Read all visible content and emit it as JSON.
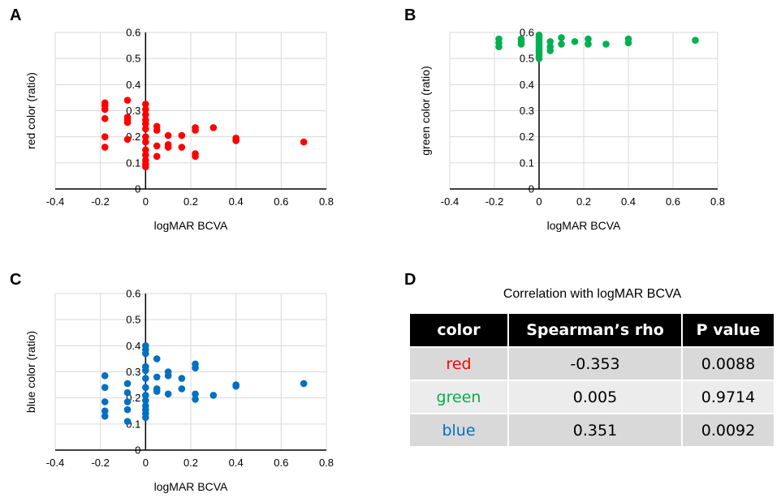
{
  "panels": [
    {
      "letter": "A"
    },
    {
      "letter": "B"
    },
    {
      "letter": "C"
    },
    {
      "letter": "D"
    }
  ],
  "chart_data": [
    {
      "type": "scatter",
      "panel": "A",
      "xlabel": "logMAR BCVA",
      "ylabel": "red color (ratio)",
      "xlim": [
        -0.4,
        0.8
      ],
      "ylim": [
        0,
        0.6
      ],
      "xticks": [
        "-0.4",
        "-0.2",
        "0",
        "0.2",
        "0.4",
        "0.6",
        "0.8"
      ],
      "yticks": [
        "0",
        "0.1",
        "0.2",
        "0.3",
        "0.4",
        "0.5",
        "0.6"
      ],
      "grid": true,
      "color": "#ff0000",
      "points": [
        [
          -0.18,
          0.33
        ],
        [
          -0.18,
          0.32
        ],
        [
          -0.18,
          0.305
        ],
        [
          -0.18,
          0.27
        ],
        [
          -0.18,
          0.2
        ],
        [
          -0.18,
          0.16
        ],
        [
          -0.08,
          0.34
        ],
        [
          -0.08,
          0.275
        ],
        [
          -0.08,
          0.265
        ],
        [
          -0.08,
          0.255
        ],
        [
          -0.08,
          0.19
        ],
        [
          0,
          0.325
        ],
        [
          0,
          0.305
        ],
        [
          0,
          0.285
        ],
        [
          0,
          0.265
        ],
        [
          0,
          0.25
        ],
        [
          0,
          0.23
        ],
        [
          0,
          0.2
        ],
        [
          0,
          0.18
        ],
        [
          0,
          0.15
        ],
        [
          0,
          0.13
        ],
        [
          0,
          0.11
        ],
        [
          0,
          0.095
        ],
        [
          0,
          0.085
        ],
        [
          0.05,
          0.24
        ],
        [
          0.05,
          0.225
        ],
        [
          0.05,
          0.165
        ],
        [
          0.05,
          0.125
        ],
        [
          0.1,
          0.205
        ],
        [
          0.1,
          0.17
        ],
        [
          0.1,
          0.16
        ],
        [
          0.16,
          0.205
        ],
        [
          0.16,
          0.16
        ],
        [
          0.22,
          0.235
        ],
        [
          0.22,
          0.225
        ],
        [
          0.22,
          0.135
        ],
        [
          0.22,
          0.125
        ],
        [
          0.3,
          0.235
        ],
        [
          0.4,
          0.195
        ],
        [
          0.4,
          0.185
        ],
        [
          0.7,
          0.18
        ]
      ]
    },
    {
      "type": "scatter",
      "panel": "B",
      "xlabel": "logMAR BCVA",
      "ylabel": "green color (ratio)",
      "xlim": [
        -0.4,
        0.8
      ],
      "ylim": [
        0,
        0.6
      ],
      "xticks": [
        "-0.4",
        "-0.2",
        "0",
        "0.2",
        "0.4",
        "0.6",
        "0.8"
      ],
      "yticks": [
        "0",
        "0.1",
        "0.2",
        "0.3",
        "0.4",
        "0.5",
        "0.6"
      ],
      "grid": true,
      "color": "#00b050",
      "points": [
        [
          -0.18,
          0.575
        ],
        [
          -0.18,
          0.56
        ],
        [
          -0.18,
          0.545
        ],
        [
          -0.08,
          0.575
        ],
        [
          -0.08,
          0.565
        ],
        [
          -0.08,
          0.555
        ],
        [
          0,
          0.59
        ],
        [
          0,
          0.58
        ],
        [
          0,
          0.57
        ],
        [
          0,
          0.56
        ],
        [
          0,
          0.55
        ],
        [
          0,
          0.54
        ],
        [
          0,
          0.53
        ],
        [
          0,
          0.52
        ],
        [
          0,
          0.51
        ],
        [
          0,
          0.5
        ],
        [
          0.05,
          0.565
        ],
        [
          0.05,
          0.545
        ],
        [
          0.05,
          0.53
        ],
        [
          0.1,
          0.58
        ],
        [
          0.1,
          0.555
        ],
        [
          0.16,
          0.565
        ],
        [
          0.22,
          0.575
        ],
        [
          0.22,
          0.555
        ],
        [
          0.3,
          0.555
        ],
        [
          0.4,
          0.575
        ],
        [
          0.4,
          0.56
        ],
        [
          0.7,
          0.57
        ]
      ]
    },
    {
      "type": "scatter",
      "panel": "C",
      "xlabel": "logMAR BCVA",
      "ylabel": "blue color (ratio)",
      "xlim": [
        -0.4,
        0.8
      ],
      "ylim": [
        0,
        0.6
      ],
      "xticks": [
        "-0.4",
        "-0.2",
        "0",
        "0.2",
        "0.4",
        "0.6",
        "0.8"
      ],
      "yticks": [
        "0",
        "0.1",
        "0.2",
        "0.3",
        "0.4",
        "0.5",
        "0.6"
      ],
      "grid": true,
      "color": "#0070c0",
      "points": [
        [
          -0.18,
          0.285
        ],
        [
          -0.18,
          0.24
        ],
        [
          -0.18,
          0.185
        ],
        [
          -0.18,
          0.15
        ],
        [
          -0.18,
          0.13
        ],
        [
          -0.08,
          0.255
        ],
        [
          -0.08,
          0.22
        ],
        [
          -0.08,
          0.185
        ],
        [
          -0.08,
          0.155
        ],
        [
          -0.08,
          0.11
        ],
        [
          0,
          0.4
        ],
        [
          0,
          0.385
        ],
        [
          0,
          0.37
        ],
        [
          0,
          0.32
        ],
        [
          0,
          0.305
        ],
        [
          0,
          0.275
        ],
        [
          0,
          0.24
        ],
        [
          0,
          0.21
        ],
        [
          0,
          0.19
        ],
        [
          0,
          0.17
        ],
        [
          0,
          0.155
        ],
        [
          0,
          0.14
        ],
        [
          0,
          0.125
        ],
        [
          0.05,
          0.35
        ],
        [
          0.05,
          0.28
        ],
        [
          0.05,
          0.235
        ],
        [
          0.05,
          0.225
        ],
        [
          0.1,
          0.3
        ],
        [
          0.1,
          0.285
        ],
        [
          0.1,
          0.215
        ],
        [
          0.16,
          0.275
        ],
        [
          0.16,
          0.235
        ],
        [
          0.22,
          0.33
        ],
        [
          0.22,
          0.315
        ],
        [
          0.22,
          0.215
        ],
        [
          0.22,
          0.195
        ],
        [
          0.3,
          0.21
        ],
        [
          0.4,
          0.25
        ],
        [
          0.4,
          0.245
        ],
        [
          0.7,
          0.255
        ]
      ]
    },
    {
      "type": "table",
      "panel": "D",
      "title": "Correlation with logMAR BCVA",
      "columns": [
        "color",
        "Spearman’s rho",
        "P value"
      ],
      "rows": [
        {
          "color": "red",
          "rho": "-0.353",
          "p": "0.0088",
          "text_color": "#ff0000"
        },
        {
          "color": "green",
          "rho": "0.005",
          "p": "0.9714",
          "text_color": "#00b050"
        },
        {
          "color": "blue",
          "rho": "0.351",
          "p": "0.0092",
          "text_color": "#0070c0"
        }
      ]
    }
  ]
}
